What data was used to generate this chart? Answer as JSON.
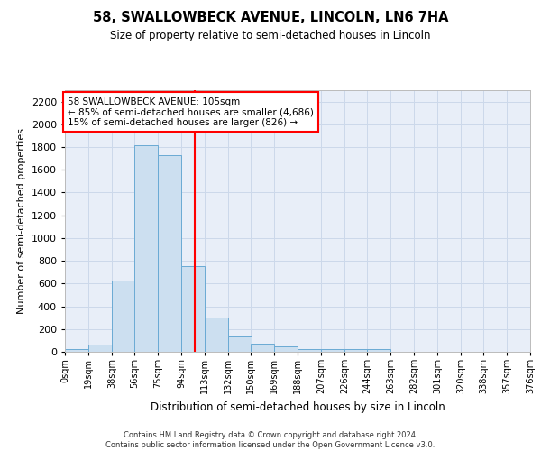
{
  "title": "58, SWALLOWBECK AVENUE, LINCOLN, LN6 7HA",
  "subtitle": "Size of property relative to semi-detached houses in Lincoln",
  "xlabel": "Distribution of semi-detached houses by size in Lincoln",
  "ylabel": "Number of semi-detached properties",
  "bin_labels": [
    "0sqm",
    "19sqm",
    "38sqm",
    "56sqm",
    "75sqm",
    "94sqm",
    "113sqm",
    "132sqm",
    "150sqm",
    "169sqm",
    "188sqm",
    "207sqm",
    "226sqm",
    "244sqm",
    "263sqm",
    "282sqm",
    "301sqm",
    "320sqm",
    "338sqm",
    "357sqm",
    "376sqm"
  ],
  "bar_values": [
    20,
    60,
    625,
    1820,
    1730,
    750,
    305,
    135,
    70,
    45,
    20,
    20,
    20,
    20,
    0,
    0,
    0,
    0,
    0,
    0
  ],
  "bar_color": "#ccdff0",
  "bar_edge_color": "#6aaad4",
  "grid_color": "#ccd8ea",
  "background_color": "#e8eef8",
  "annotation_box_text": "58 SWALLOWBECK AVENUE: 105sqm\n← 85% of semi-detached houses are smaller (4,686)\n15% of semi-detached houses are larger (826) →",
  "annotation_box_color": "white",
  "annotation_box_edge_color": "red",
  "property_line_color": "red",
  "footer_text": "Contains HM Land Registry data © Crown copyright and database right 2024.\nContains public sector information licensed under the Open Government Licence v3.0.",
  "ylim": [
    0,
    2300
  ],
  "yticks": [
    0,
    200,
    400,
    600,
    800,
    1000,
    1200,
    1400,
    1600,
    1800,
    2000,
    2200
  ],
  "bin_width": 19,
  "property_sqm": 105
}
